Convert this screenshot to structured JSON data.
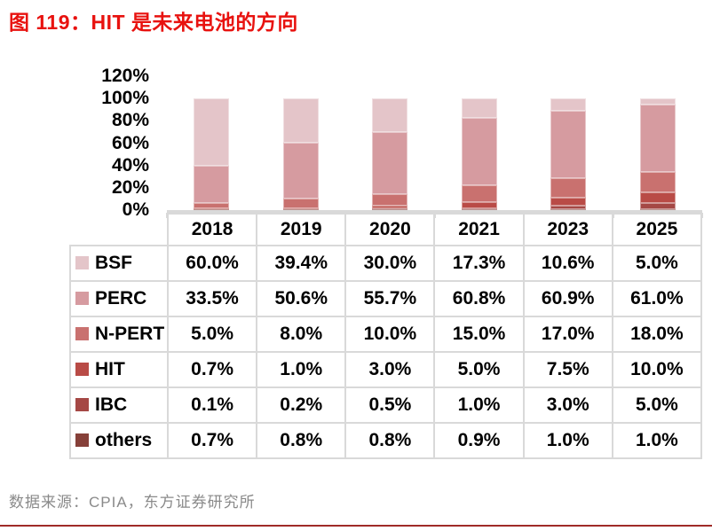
{
  "title": "图 119：HIT 是未来电池的方向",
  "source": "数据来源：CPIA，东方证券研究所",
  "colors": {
    "title": "#e8120f",
    "footer_rule": "#a02b28",
    "source_text": "#8a8a8a",
    "axis_line": "#d9d9d9",
    "table_border": "#d9d9d9"
  },
  "chart_data": {
    "type": "bar",
    "stacked": true,
    "title": "图 119：HIT 是未来电池的方向",
    "categories": [
      "2018",
      "2019",
      "2020",
      "2021",
      "2023",
      "2025"
    ],
    "series": [
      {
        "name": "BSF",
        "color": "#e4c5c9",
        "values": [
          60.0,
          39.4,
          30.0,
          17.3,
          10.6,
          5.0
        ]
      },
      {
        "name": "PERC",
        "color": "#d69ba0",
        "values": [
          33.5,
          50.6,
          55.7,
          60.8,
          60.9,
          61.0
        ]
      },
      {
        "name": "N-PERT",
        "color": "#c9716f",
        "values": [
          5.0,
          8.0,
          10.0,
          15.0,
          17.0,
          18.0
        ]
      },
      {
        "name": "HIT",
        "color": "#b94b46",
        "values": [
          0.7,
          1.0,
          3.0,
          5.0,
          7.5,
          10.0
        ]
      },
      {
        "name": "IBC",
        "color": "#a54845",
        "values": [
          0.1,
          0.2,
          0.5,
          1.0,
          3.0,
          5.0
        ]
      },
      {
        "name": "others",
        "color": "#864039",
        "values": [
          0.7,
          0.8,
          0.8,
          0.9,
          1.0,
          1.0
        ]
      }
    ],
    "stack_order_bottom_to_top": [
      "others",
      "IBC",
      "HIT",
      "N-PERT",
      "PERC",
      "BSF"
    ],
    "y_ticks": [
      "0%",
      "20%",
      "40%",
      "60%",
      "80%",
      "100%",
      "120%"
    ],
    "ylim": [
      0,
      120
    ],
    "grid": false,
    "legend_position": "table-left-column",
    "xlabel": "",
    "ylabel": ""
  },
  "table": {
    "header": [
      "",
      "2018",
      "2019",
      "2020",
      "2021",
      "2023",
      "2025"
    ],
    "rows": [
      {
        "label": "BSF",
        "values": [
          "60.0%",
          "39.4%",
          "30.0%",
          "17.3%",
          "10.6%",
          "5.0%"
        ]
      },
      {
        "label": "PERC",
        "values": [
          "33.5%",
          "50.6%",
          "55.7%",
          "60.8%",
          "60.9%",
          "61.0%"
        ]
      },
      {
        "label": "N-PERT",
        "values": [
          "5.0%",
          "8.0%",
          "10.0%",
          "15.0%",
          "17.0%",
          "18.0%"
        ]
      },
      {
        "label": "HIT",
        "values": [
          "0.7%",
          "1.0%",
          "3.0%",
          "5.0%",
          "7.5%",
          "10.0%"
        ]
      },
      {
        "label": "IBC",
        "values": [
          "0.1%",
          "0.2%",
          "0.5%",
          "1.0%",
          "3.0%",
          "5.0%"
        ]
      },
      {
        "label": "others",
        "values": [
          "0.7%",
          "0.8%",
          "0.8%",
          "0.9%",
          "1.0%",
          "1.0%"
        ]
      }
    ]
  }
}
